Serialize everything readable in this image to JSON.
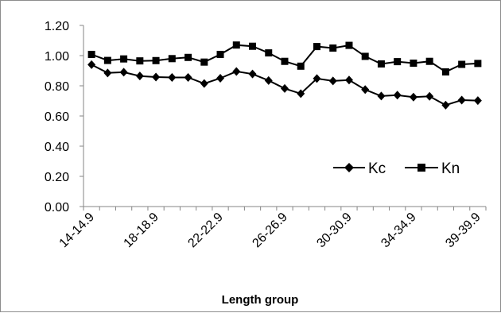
{
  "chart_data": {
    "type": "line",
    "title": "",
    "xlabel": "Length group",
    "ylabel": "",
    "ylim": [
      0,
      1.2
    ],
    "yticks": [
      "0.00",
      "0.20",
      "0.40",
      "0.60",
      "0.80",
      "1.00",
      "1.20"
    ],
    "xtick_labels": [
      "14-14.9",
      "18-18.9",
      "22-22.9",
      "26-26.9",
      "30-30.9",
      "34-34.9",
      "39-39.9"
    ],
    "xtick_indices": [
      0,
      4,
      8,
      12,
      16,
      20,
      24
    ],
    "n_points": 25,
    "grid": false,
    "legend_position": "right",
    "series": [
      {
        "name": "Kc",
        "marker": "diamond",
        "color": "#000000",
        "values": [
          0.94,
          0.885,
          0.89,
          0.865,
          0.858,
          0.855,
          0.855,
          0.815,
          0.85,
          0.895,
          0.878,
          0.835,
          0.782,
          0.748,
          0.848,
          0.832,
          0.838,
          0.775,
          0.732,
          0.738,
          0.725,
          0.73,
          0.672,
          0.705,
          0.702
        ]
      },
      {
        "name": "Kn",
        "marker": "square",
        "color": "#000000",
        "values": [
          1.008,
          0.968,
          0.978,
          0.965,
          0.967,
          0.98,
          0.988,
          0.957,
          1.008,
          1.07,
          1.062,
          1.018,
          0.962,
          0.93,
          1.06,
          1.05,
          1.068,
          0.995,
          0.945,
          0.96,
          0.95,
          0.962,
          0.892,
          0.942,
          0.948
        ]
      }
    ]
  }
}
